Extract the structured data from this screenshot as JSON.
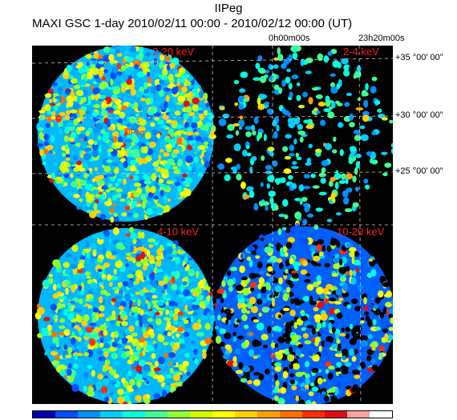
{
  "header": {
    "object_name": "IIPeg",
    "subtitle": "MAXI GSC 1-day 2010/02/11 00:00 - 2010/02/12 00:00 (UT)"
  },
  "axes": {
    "ra_labels": [
      "0h00m00s",
      "23h20m00s"
    ],
    "dec_labels": [
      "+35 °00' 00\"",
      "+30 °00' 00\"",
      "+25 °00' 00\""
    ]
  },
  "panels": [
    {
      "band": "2-20 keV",
      "source_label": "IIPeg",
      "density": 0.95
    },
    {
      "band": "2-4 keV",
      "density": 0.35
    },
    {
      "band": "4-10 keV",
      "density": 0.85
    },
    {
      "band": "10-20 keV",
      "density": 0.7
    }
  ],
  "colorbar": {
    "colors": [
      "#0000b0",
      "#0050ff",
      "#0090ff",
      "#00d0ff",
      "#00ffe0",
      "#40ff90",
      "#90ff30",
      "#d0ff00",
      "#ffff00",
      "#ffd000",
      "#ffa000",
      "#ff7000",
      "#ff3000",
      "#e01010",
      "#ffa0a0",
      "#ffffff"
    ]
  }
}
